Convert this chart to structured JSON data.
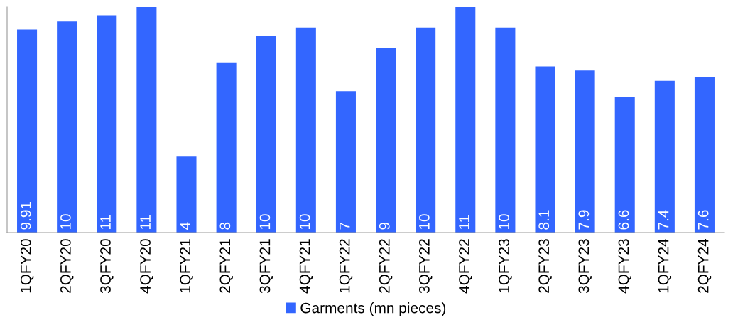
{
  "chart_data": {
    "type": "bar",
    "categories": [
      "1QFY20",
      "2QFY20",
      "3QFY20",
      "4QFY20",
      "1QFY21",
      "2QFY21",
      "3QFY21",
      "4QFY21",
      "1QFY22",
      "2QFY22",
      "3QFY22",
      "4QFY22",
      "1QFY23",
      "2QFY23",
      "3QFY23",
      "4QFY23",
      "1QFY24",
      "2QFY24"
    ],
    "series": [
      {
        "name": "Garments (mn pieces)",
        "color": "#3366ff",
        "values": [
          9.91,
          10.3,
          10.6,
          11.0,
          3.7,
          8.3,
          9.6,
          10.0,
          6.9,
          9.0,
          10.0,
          11.0,
          10.0,
          8.1,
          7.9,
          6.6,
          7.4,
          7.6
        ],
        "value_labels": [
          "9.91",
          "10",
          "11",
          "11",
          "4",
          "8",
          "10",
          "10",
          "7",
          "9",
          "10",
          "11",
          "10",
          "8.1",
          "7.9",
          "6.6",
          "7.4",
          "7.6"
        ]
      }
    ],
    "legend": "bottom",
    "grid": false
  }
}
